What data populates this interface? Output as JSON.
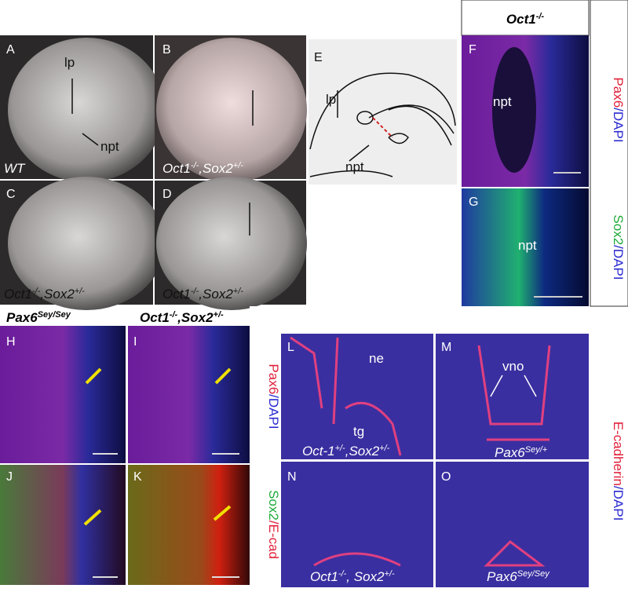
{
  "header": [
    {
      "text": "Oct1"
    },
    {
      "text": "-/-",
      "sup": true
    }
  ],
  "panels": [
    {
      "letter": "A",
      "caption": [
        {
          "text": "WT"
        }
      ],
      "labels": [
        "lp",
        "npt"
      ]
    },
    {
      "letter": "B",
      "caption": [
        {
          "text": "Oct1"
        },
        {
          "text": "-/-",
          "sup": true
        },
        {
          "text": ",Sox2"
        },
        {
          "text": "+/-",
          "sup": true
        }
      ]
    },
    {
      "letter": "C",
      "caption": [
        {
          "text": "Oct1"
        },
        {
          "text": "-/-",
          "sup": true
        },
        {
          "text": ",Sox2"
        },
        {
          "text": "+/-",
          "sup": true
        }
      ]
    },
    {
      "letter": "D",
      "caption": [
        {
          "text": "Oct1"
        },
        {
          "text": "-/-",
          "sup": true
        },
        {
          "text": ",Sox2"
        },
        {
          "text": "+/-",
          "sup": true
        }
      ]
    },
    {
      "letter": "E",
      "labels": [
        "lp",
        "npt"
      ]
    },
    {
      "letter": "F",
      "labels": [
        "npt"
      ]
    },
    {
      "letter": "G",
      "labels": [
        "npt"
      ]
    },
    {
      "letter": "H"
    },
    {
      "letter": "I"
    },
    {
      "letter": "J"
    },
    {
      "letter": "K"
    },
    {
      "letter": "L",
      "labels": [
        "ne",
        "tg"
      ],
      "caption": [
        {
          "text": "Oct-1"
        },
        {
          "text": "+/-",
          "sup": true
        },
        {
          "text": ",Sox2"
        },
        {
          "text": "+/-",
          "sup": true
        }
      ]
    },
    {
      "letter": "M",
      "labels": [
        "vno"
      ],
      "caption": [
        {
          "text": "Pax6"
        },
        {
          "text": "Sey/+",
          "sup": true
        }
      ]
    },
    {
      "letter": "N",
      "caption": [
        {
          "text": "Oct1"
        },
        {
          "text": "-/-",
          "sup": true
        },
        {
          "text": ", Sox2"
        },
        {
          "text": "+/-",
          "sup": true
        }
      ]
    },
    {
      "letter": "O",
      "caption": [
        {
          "text": "Pax6"
        },
        {
          "text": "Sey/Sey",
          "sup": true
        }
      ]
    }
  ],
  "column_headers": [
    [
      {
        "text": "Pax6"
      },
      {
        "text": "Sey/Sey",
        "sup": true
      }
    ],
    [
      {
        "text": "Oct1"
      },
      {
        "text": "-/-",
        "sup": true
      },
      {
        "text": ",Sox2"
      },
      {
        "text": "+/-",
        "sup": true
      }
    ]
  ],
  "stain_labels": [
    [
      {
        "text": "Pax6",
        "color": "#e0203a"
      },
      {
        "text": "/DAPI",
        "color": "#2a2ad0"
      }
    ],
    [
      {
        "text": "Sox2",
        "color": "#1faa3a"
      },
      {
        "text": "/DAPI",
        "color": "#2a2ad0"
      }
    ],
    [
      {
        "text": "E-cadherin",
        "color": "#e0203a"
      },
      {
        "text": "/DAPI",
        "color": "#2a2ad0"
      }
    ],
    [
      {
        "text": "Pax6",
        "color": "#e0203a"
      },
      {
        "text": "/DAPI",
        "color": "#2a2ad0"
      }
    ],
    [
      {
        "text": "Sox2",
        "color": "#1faa3a"
      },
      {
        "text": "/E-cad",
        "color": "#e0203a"
      }
    ]
  ]
}
